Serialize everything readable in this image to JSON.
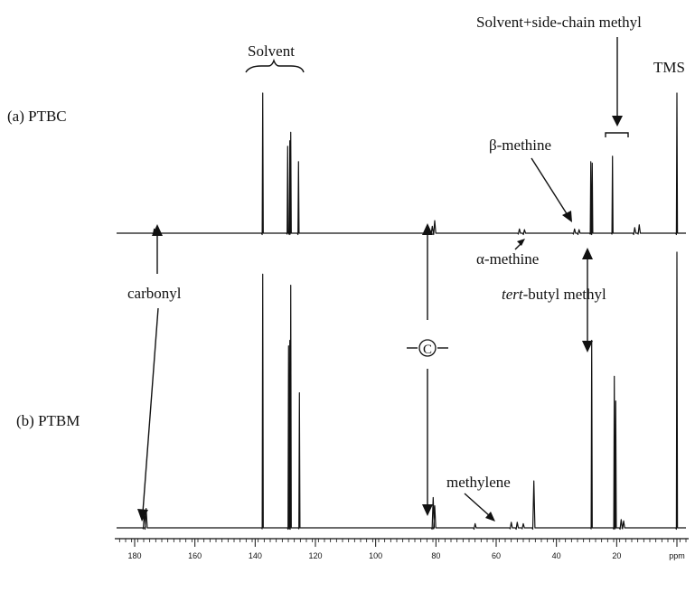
{
  "chart_data": {
    "type": "line",
    "title": "",
    "xlabel": "",
    "ylabel": "",
    "x_unit": "ppm",
    "xlim": [
      186,
      -3
    ],
    "x_reversed": true,
    "grid": false,
    "x_ticks": [
      "180",
      "160",
      "140",
      "120",
      "100",
      "80",
      "60",
      "40",
      "20",
      "ppm"
    ],
    "series": [
      {
        "name": "(a) PTBC",
        "peaks": [
          {
            "ppm": 173.5,
            "height": 0.03
          },
          {
            "ppm": 137.5,
            "height": 1.0
          },
          {
            "ppm": 129.2,
            "height": 0.62
          },
          {
            "ppm": 128.5,
            "height": 0.66
          },
          {
            "ppm": 128.2,
            "height": 0.72
          },
          {
            "ppm": 125.6,
            "height": 0.51
          },
          {
            "ppm": 81.2,
            "height": 0.05
          },
          {
            "ppm": 80.4,
            "height": 0.09
          },
          {
            "ppm": 52.3,
            "height": 0.03
          },
          {
            "ppm": 50.6,
            "height": 0.025
          },
          {
            "ppm": 34.0,
            "height": 0.03
          },
          {
            "ppm": 32.5,
            "height": 0.025
          },
          {
            "ppm": 28.6,
            "height": 0.51
          },
          {
            "ppm": 28.1,
            "height": 0.5
          },
          {
            "ppm": 21.4,
            "height": 0.55
          },
          {
            "ppm": 14.0,
            "height": 0.04
          },
          {
            "ppm": 12.5,
            "height": 0.06
          },
          {
            "ppm": 0.0,
            "height": 1.0
          }
        ]
      },
      {
        "name": "(b) PTBM",
        "peaks": [
          {
            "ppm": 176.8,
            "height": 0.06
          },
          {
            "ppm": 176.2,
            "height": 0.07
          },
          {
            "ppm": 137.5,
            "height": 0.92
          },
          {
            "ppm": 128.9,
            "height": 0.66
          },
          {
            "ppm": 128.5,
            "height": 0.68
          },
          {
            "ppm": 128.2,
            "height": 0.88
          },
          {
            "ppm": 125.3,
            "height": 0.49
          },
          {
            "ppm": 80.9,
            "height": 0.11
          },
          {
            "ppm": 80.4,
            "height": 0.08
          },
          {
            "ppm": 67.0,
            "height": 0.015
          },
          {
            "ppm": 55.0,
            "height": 0.02
          },
          {
            "ppm": 53.0,
            "height": 0.02
          },
          {
            "ppm": 51.0,
            "height": 0.015
          },
          {
            "ppm": 47.5,
            "height": 0.17
          },
          {
            "ppm": 28.3,
            "height": 0.68
          },
          {
            "ppm": 20.8,
            "height": 0.55
          },
          {
            "ppm": 20.3,
            "height": 0.46
          },
          {
            "ppm": 18.5,
            "height": 0.03
          },
          {
            "ppm": 17.7,
            "height": 0.025
          },
          {
            "ppm": 0.0,
            "height": 1.0
          }
        ]
      }
    ],
    "annotations": {
      "solvent": "Solvent",
      "solvent_side_chain": "Solvent+side-chain methyl",
      "tms": "TMS",
      "beta_methine": "β-methine",
      "alpha_methine": "α-methine",
      "tert_prefix": "tert",
      "tert_rest": "-butyl methyl",
      "carbonyl": "carbonyl",
      "c_marker": "C",
      "methylene": "methylene"
    }
  }
}
